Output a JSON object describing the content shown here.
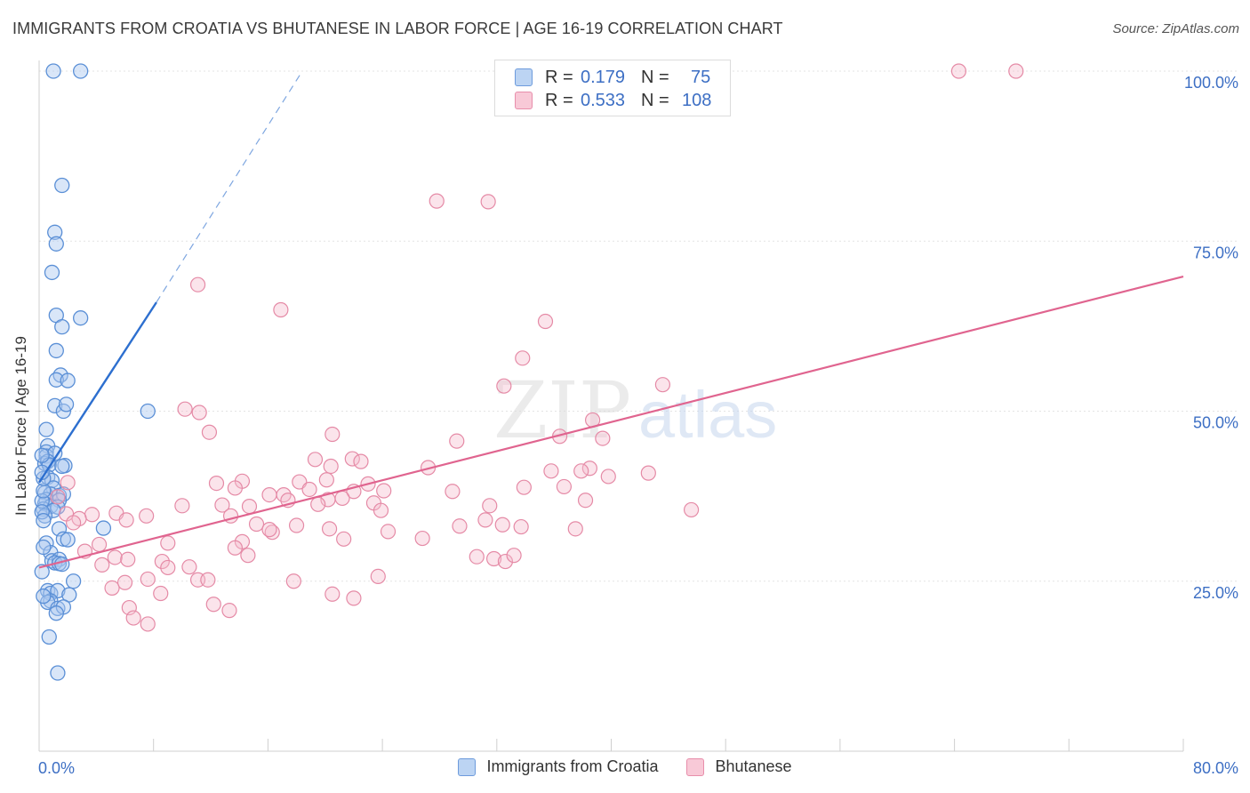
{
  "title": "IMMIGRANTS FROM CROATIA VS BHUTANESE IN LABOR FORCE | AGE 16-19 CORRELATION CHART",
  "source": "Source: ZipAtlas.com",
  "watermark": {
    "zip": "ZIP",
    "atlas": "atlas"
  },
  "legend": {
    "rows": [
      {
        "r_label": "R =",
        "r_value": "0.179",
        "n_label": "N =",
        "n_value": "75"
      },
      {
        "r_label": "R =",
        "r_value": "0.533",
        "n_label": "N =",
        "n_value": "108"
      }
    ]
  },
  "colors": {
    "blue_fill": "#aac8f0",
    "blue_stroke": "#5a8fd6",
    "blue_line": "#2d6fcf",
    "pink_fill": "#f6bccd",
    "pink_stroke": "#e58aa6",
    "pink_line": "#e0648f",
    "grid": "#e3e3e3",
    "tick_text": "#3d6fc4"
  },
  "chart_data": {
    "type": "scatter",
    "title": "IMMIGRANTS FROM CROATIA VS BHUTANESE IN LABOR FORCE | AGE 16-19 CORRELATION CHART",
    "xlabel": "",
    "ylabel": "In Labor Force | Age 16-19",
    "xlim": [
      0,
      80
    ],
    "ylim": [
      0,
      100
    ],
    "x_tick_labels": [
      "0.0%",
      "80.0%"
    ],
    "y_ticks": [
      25,
      50,
      75,
      100
    ],
    "y_tick_labels": [
      "25.0%",
      "50.0%",
      "75.0%",
      "100.0%"
    ],
    "grid": true,
    "legend_position": "top-center",
    "series": [
      {
        "name": "Immigrants from Croatia",
        "color": "#aac8f0",
        "trend": {
          "x": [
            0,
            8.2
          ],
          "y": [
            39.5,
            66.0
          ],
          "dashed_to": [
            18.4,
            100
          ]
        },
        "points": [
          [
            1.0,
            100
          ],
          [
            2.9,
            100
          ],
          [
            1.6,
            83.2
          ],
          [
            1.1,
            76.3
          ],
          [
            1.2,
            74.6
          ],
          [
            0.9,
            70.4
          ],
          [
            1.2,
            64.1
          ],
          [
            2.9,
            63.7
          ],
          [
            1.6,
            62.4
          ],
          [
            1.2,
            58.9
          ],
          [
            1.5,
            55.3
          ],
          [
            1.2,
            54.6
          ],
          [
            2.0,
            54.5
          ],
          [
            1.1,
            50.8
          ],
          [
            1.7,
            50.0
          ],
          [
            1.9,
            51.0
          ],
          [
            7.6,
            50.0
          ],
          [
            0.5,
            47.3
          ],
          [
            0.6,
            44.9
          ],
          [
            0.5,
            44.0
          ],
          [
            0.5,
            43.4
          ],
          [
            1.1,
            43.8
          ],
          [
            0.4,
            42.3
          ],
          [
            0.6,
            42.6
          ],
          [
            0.7,
            42.1
          ],
          [
            1.8,
            42.0
          ],
          [
            1.6,
            41.9
          ],
          [
            0.6,
            40.3
          ],
          [
            0.9,
            39.8
          ],
          [
            1.0,
            38.7
          ],
          [
            0.4,
            38.0
          ],
          [
            0.8,
            37.8
          ],
          [
            1.4,
            37.6
          ],
          [
            1.7,
            37.8
          ],
          [
            0.5,
            37.0
          ],
          [
            1.4,
            36.9
          ],
          [
            0.4,
            36.4
          ],
          [
            0.8,
            36.0
          ],
          [
            1.3,
            35.9
          ],
          [
            0.3,
            35.6
          ],
          [
            1.0,
            35.4
          ],
          [
            0.4,
            34.6
          ],
          [
            1.4,
            32.7
          ],
          [
            4.5,
            32.8
          ],
          [
            1.7,
            31.2
          ],
          [
            2.0,
            31.1
          ],
          [
            0.5,
            30.6
          ],
          [
            0.8,
            29.2
          ],
          [
            0.9,
            28.0
          ],
          [
            1.4,
            28.2
          ],
          [
            1.1,
            27.7
          ],
          [
            1.4,
            27.6
          ],
          [
            1.6,
            27.5
          ],
          [
            2.4,
            25.0
          ],
          [
            0.6,
            23.6
          ],
          [
            0.8,
            23.2
          ],
          [
            1.3,
            23.6
          ],
          [
            2.1,
            23.0
          ],
          [
            0.8,
            22.1
          ],
          [
            0.6,
            21.9
          ],
          [
            1.3,
            21.0
          ],
          [
            1.7,
            21.2
          ],
          [
            1.2,
            20.3
          ],
          [
            0.7,
            16.8
          ],
          [
            1.3,
            11.5
          ],
          [
            0.2,
            36.8
          ],
          [
            0.3,
            38.3
          ],
          [
            0.2,
            35.2
          ],
          [
            0.3,
            40.1
          ],
          [
            0.2,
            43.5
          ],
          [
            0.3,
            30.0
          ],
          [
            0.3,
            22.8
          ],
          [
            0.2,
            26.4
          ],
          [
            0.3,
            33.9
          ],
          [
            0.2,
            41.0
          ]
        ]
      },
      {
        "name": "Bhutanese",
        "color": "#f6bccd",
        "trend": {
          "x": [
            0,
            80
          ],
          "y": [
            27.0,
            69.8
          ]
        },
        "points": [
          [
            64.3,
            100
          ],
          [
            68.3,
            100
          ],
          [
            27.8,
            80.9
          ],
          [
            31.4,
            80.8
          ],
          [
            11.1,
            68.6
          ],
          [
            16.9,
            64.9
          ],
          [
            35.4,
            63.2
          ],
          [
            33.8,
            57.8
          ],
          [
            32.5,
            53.7
          ],
          [
            43.6,
            53.9
          ],
          [
            10.2,
            50.3
          ],
          [
            38.7,
            48.7
          ],
          [
            11.9,
            46.9
          ],
          [
            20.5,
            46.6
          ],
          [
            36.4,
            46.3
          ],
          [
            39.4,
            46.0
          ],
          [
            29.2,
            45.6
          ],
          [
            19.3,
            42.9
          ],
          [
            21.9,
            43.0
          ],
          [
            22.5,
            42.6
          ],
          [
            20.4,
            41.9
          ],
          [
            27.2,
            41.7
          ],
          [
            35.8,
            41.2
          ],
          [
            38.5,
            41.6
          ],
          [
            37.9,
            41.2
          ],
          [
            42.6,
            40.9
          ],
          [
            39.8,
            40.4
          ],
          [
            14.2,
            39.7
          ],
          [
            18.2,
            39.6
          ],
          [
            12.4,
            39.4
          ],
          [
            20.1,
            39.9
          ],
          [
            23.0,
            39.3
          ],
          [
            33.9,
            38.8
          ],
          [
            36.7,
            38.9
          ],
          [
            13.7,
            38.7
          ],
          [
            22.0,
            38.2
          ],
          [
            24.1,
            38.3
          ],
          [
            18.9,
            38.5
          ],
          [
            17.1,
            37.7
          ],
          [
            28.9,
            38.2
          ],
          [
            16.1,
            37.7
          ],
          [
            17.4,
            36.9
          ],
          [
            20.2,
            37.0
          ],
          [
            21.2,
            37.2
          ],
          [
            10.0,
            36.1
          ],
          [
            12.8,
            36.2
          ],
          [
            14.7,
            36.0
          ],
          [
            19.5,
            36.3
          ],
          [
            38.2,
            36.9
          ],
          [
            23.4,
            36.5
          ],
          [
            23.9,
            35.4
          ],
          [
            45.6,
            35.5
          ],
          [
            31.5,
            36.1
          ],
          [
            2.0,
            39.5
          ],
          [
            1.3,
            37.4
          ],
          [
            1.9,
            34.9
          ],
          [
            3.7,
            34.8
          ],
          [
            5.4,
            35.0
          ],
          [
            13.4,
            34.6
          ],
          [
            2.8,
            34.2
          ],
          [
            2.4,
            33.6
          ],
          [
            6.1,
            34.0
          ],
          [
            7.5,
            34.6
          ],
          [
            15.2,
            33.4
          ],
          [
            18.0,
            33.2
          ],
          [
            20.3,
            32.7
          ],
          [
            29.4,
            33.1
          ],
          [
            31.2,
            34.0
          ],
          [
            32.4,
            33.3
          ],
          [
            33.7,
            33.0
          ],
          [
            37.5,
            32.7
          ],
          [
            24.4,
            32.3
          ],
          [
            16.3,
            32.2
          ],
          [
            16.1,
            32.6
          ],
          [
            21.3,
            31.2
          ],
          [
            26.8,
            31.3
          ],
          [
            14.2,
            30.8
          ],
          [
            9.0,
            30.6
          ],
          [
            4.2,
            30.4
          ],
          [
            13.7,
            29.9
          ],
          [
            14.6,
            28.8
          ],
          [
            3.2,
            29.4
          ],
          [
            5.3,
            28.5
          ],
          [
            6.2,
            28.2
          ],
          [
            8.6,
            27.9
          ],
          [
            30.6,
            28.6
          ],
          [
            31.8,
            28.3
          ],
          [
            32.6,
            27.9
          ],
          [
            33.2,
            28.8
          ],
          [
            4.4,
            27.4
          ],
          [
            9.0,
            27.0
          ],
          [
            10.5,
            27.1
          ],
          [
            23.7,
            25.7
          ],
          [
            11.1,
            25.2
          ],
          [
            11.8,
            25.2
          ],
          [
            17.8,
            25.0
          ],
          [
            6.0,
            24.8
          ],
          [
            7.6,
            25.3
          ],
          [
            5.1,
            24.0
          ],
          [
            8.5,
            23.2
          ],
          [
            20.5,
            23.1
          ],
          [
            22.0,
            22.5
          ],
          [
            6.3,
            21.1
          ],
          [
            12.2,
            21.6
          ],
          [
            13.3,
            20.7
          ],
          [
            6.6,
            19.6
          ],
          [
            7.6,
            18.7
          ],
          [
            11.2,
            49.8
          ]
        ]
      }
    ]
  },
  "bottom_legend": [
    "Immigrants from Croatia",
    "Bhutanese"
  ]
}
